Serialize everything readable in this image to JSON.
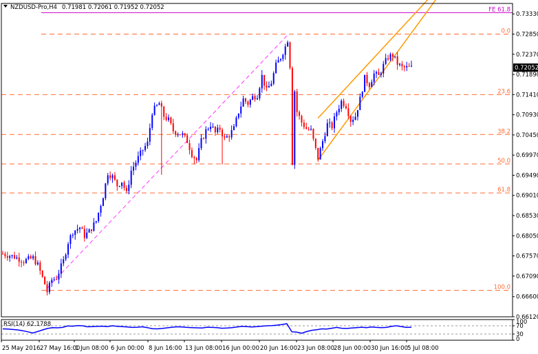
{
  "header": {
    "symbol": "NZDUSD-Pro,H4",
    "ohlc": "0.71981 0.72061 0.71952 0.72052"
  },
  "chart_data": {
    "type": "candlestick",
    "symbol": "NZDUSD-Pro",
    "timeframe": "H4",
    "last_price": "0.72052",
    "y_range": [
      0.6612,
      0.7358
    ],
    "y_ticks": [
      "0.73330",
      "0.72850",
      "0.72370",
      "0.71890",
      "0.71410",
      "0.70930",
      "0.70450",
      "0.69970",
      "0.69490",
      "0.69010",
      "0.68530",
      "0.68050",
      "0.67570",
      "0.67090",
      "0.66600",
      "0.66120"
    ],
    "x_ticks": [
      "25 May 2016",
      "27 May 16:00",
      "1 Jun 08:00",
      "6 Jun 00:00",
      "8 Jun 16:00",
      "13 Jun 08:00",
      "16 Jun 00:00",
      "20 Jun 16:00",
      "23 Jun 08:00",
      "28 Jun 00:00",
      "30 Jun 16:00",
      "5 Jul 08:00"
    ],
    "candle_count": 176,
    "fib_levels": [
      {
        "label": "FE 61.8",
        "price": 0.7336
      },
      {
        "label": "0.0",
        "price": 0.7285
      },
      {
        "label": "23.6",
        "price": 0.7141
      },
      {
        "label": "38.2",
        "price": 0.7046
      },
      {
        "label": "50.0",
        "price": 0.6976
      },
      {
        "label": "61.8",
        "price": 0.6907
      },
      {
        "label": "100.0",
        "price": 0.6675
      }
    ],
    "close_path": [
      [
        0,
        0.6762
      ],
      [
        5,
        0.6755
      ],
      [
        9,
        0.6745
      ],
      [
        13,
        0.6752
      ],
      [
        15,
        0.6735
      ],
      [
        18,
        0.669
      ],
      [
        19,
        0.6672
      ],
      [
        21,
        0.67
      ],
      [
        23,
        0.6705
      ],
      [
        26,
        0.6745
      ],
      [
        28,
        0.679
      ],
      [
        30,
        0.6815
      ],
      [
        33,
        0.6825
      ],
      [
        35,
        0.6805
      ],
      [
        37,
        0.6815
      ],
      [
        40,
        0.684
      ],
      [
        43,
        0.69
      ],
      [
        45,
        0.6955
      ],
      [
        47,
        0.6945
      ],
      [
        49,
        0.6925
      ],
      [
        51,
        0.6935
      ],
      [
        53,
        0.6905
      ],
      [
        55,
        0.696
      ],
      [
        57,
        0.698
      ],
      [
        60,
        0.701
      ],
      [
        62,
        0.7025
      ],
      [
        64,
        0.71
      ],
      [
        67,
        0.712
      ],
      [
        69,
        0.709
      ],
      [
        71,
        0.708
      ],
      [
        73,
        0.7055
      ],
      [
        75,
        0.705
      ],
      [
        77,
        0.7045
      ],
      [
        79,
        0.703
      ],
      [
        81,
        0.7
      ],
      [
        83,
        0.6985
      ],
      [
        85,
        0.703
      ],
      [
        87,
        0.7055
      ],
      [
        89,
        0.707
      ],
      [
        91,
        0.705
      ],
      [
        93,
        0.706
      ],
      [
        95,
        0.7035
      ],
      [
        97,
        0.7045
      ],
      [
        99,
        0.706
      ],
      [
        101,
        0.71
      ],
      [
        103,
        0.713
      ],
      [
        105,
        0.712
      ],
      [
        107,
        0.7135
      ],
      [
        109,
        0.714
      ],
      [
        111,
        0.7185
      ],
      [
        113,
        0.715
      ],
      [
        115,
        0.717
      ],
      [
        117,
        0.721
      ],
      [
        119,
        0.723
      ],
      [
        121,
        0.7255
      ],
      [
        122,
        0.7272
      ],
      [
        123,
        0.721
      ],
      [
        124,
        0.698
      ],
      [
        125,
        0.715
      ],
      [
        126,
        0.71
      ],
      [
        128,
        0.7075
      ],
      [
        130,
        0.706
      ],
      [
        132,
        0.7055
      ],
      [
        134,
        0.701
      ],
      [
        135,
        0.699
      ],
      [
        137,
        0.703
      ],
      [
        139,
        0.707
      ],
      [
        141,
        0.7065
      ],
      [
        143,
        0.71
      ],
      [
        145,
        0.7125
      ],
      [
        147,
        0.7115
      ],
      [
        149,
        0.708
      ],
      [
        151,
        0.709
      ],
      [
        153,
        0.713
      ],
      [
        155,
        0.718
      ],
      [
        157,
        0.7165
      ],
      [
        159,
        0.719
      ],
      [
        161,
        0.7185
      ],
      [
        163,
        0.721
      ],
      [
        165,
        0.723
      ],
      [
        167,
        0.7235
      ],
      [
        169,
        0.7215
      ],
      [
        171,
        0.7205
      ],
      [
        173,
        0.7205
      ],
      [
        175,
        0.7205
      ]
    ],
    "swing_marks": [
      {
        "i": 68,
        "low": 0.695
      },
      {
        "i": 82,
        "low": 0.6975
      },
      {
        "i": 94,
        "low": 0.6975
      },
      {
        "i": 124,
        "low": 0.6973
      },
      {
        "i": 135,
        "low": 0.6985
      }
    ],
    "trendline": {
      "from": [
        19,
        0.668
      ],
      "to": [
        122,
        0.7283
      ]
    },
    "channel_upper": {
      "from": [
        135,
        0.7085
      ],
      "to": [
        170,
        0.7295
      ]
    },
    "channel_lower": {
      "from": [
        135,
        0.6985
      ],
      "to": [
        170,
        0.725
      ]
    },
    "rsi": {
      "label": "RSI(14) 62.1788",
      "levels": [
        "100",
        "70",
        "30",
        "0"
      ],
      "values": [
        55,
        54,
        52,
        50,
        46,
        41,
        35,
        42,
        50,
        57,
        61,
        60,
        62,
        69,
        68,
        71,
        70,
        65,
        66,
        67,
        68,
        66,
        70,
        67,
        66,
        64,
        62,
        63,
        65,
        61,
        56,
        55,
        57,
        60,
        63,
        65,
        64,
        62,
        61,
        60,
        59,
        63,
        62,
        61,
        58,
        59,
        61,
        64,
        67,
        66,
        64,
        66,
        68,
        70,
        71,
        73,
        76,
        80,
        41,
        39,
        34,
        42,
        48,
        51,
        55,
        54,
        58,
        62,
        58,
        57,
        59,
        61,
        63,
        61,
        64,
        62,
        61,
        62,
        67,
        70,
        66,
        62,
        63
      ]
    }
  }
}
